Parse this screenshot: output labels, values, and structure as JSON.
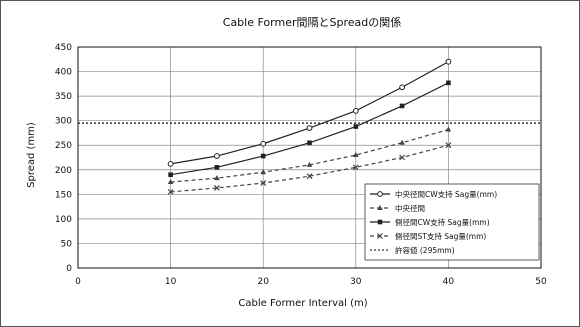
{
  "chart_data": {
    "type": "line",
    "title": "Cable Former間隔とSpreadの関係",
    "xlabel": "Cable Former Interval (m)",
    "ylabel": "Spread (mm)",
    "xlim": [
      0,
      50
    ],
    "ylim": [
      0,
      450
    ],
    "x_ticks": [
      "0",
      "10",
      "20",
      "30",
      "40",
      "50"
    ],
    "y_ticks": [
      "0",
      "50",
      "100",
      "150",
      "200",
      "250",
      "300",
      "350",
      "400",
      "450"
    ],
    "grid": true,
    "legend_position": "bottom-right inside plot",
    "x": [
      10,
      15,
      20,
      25,
      30,
      35,
      40
    ],
    "series": [
      {
        "name": "中央径間CW支持 Sag量(mm)",
        "values": [
          212,
          228,
          253,
          285,
          320,
          368,
          420
        ],
        "color": "#222222",
        "style": "solid",
        "marker": "circle"
      },
      {
        "name": "中央径間",
        "values": [
          175,
          183,
          195,
          210,
          230,
          255,
          282
        ],
        "color": "#444444",
        "style": "dashed",
        "marker": "triangle"
      },
      {
        "name": "側径間CW支持 Sag量(mm)",
        "values": [
          190,
          205,
          228,
          255,
          288,
          330,
          377
        ],
        "color": "#222222",
        "style": "solid",
        "marker": "square"
      },
      {
        "name": "側径間ST支持 Sag量(mm)",
        "values": [
          155,
          163,
          173,
          187,
          205,
          225,
          250
        ],
        "color": "#444444",
        "style": "dashed",
        "marker": "cross"
      },
      {
        "name": "許容値 (295mm)",
        "constant": 295,
        "color": "#333333",
        "style": "dotted",
        "marker": "none"
      }
    ]
  }
}
